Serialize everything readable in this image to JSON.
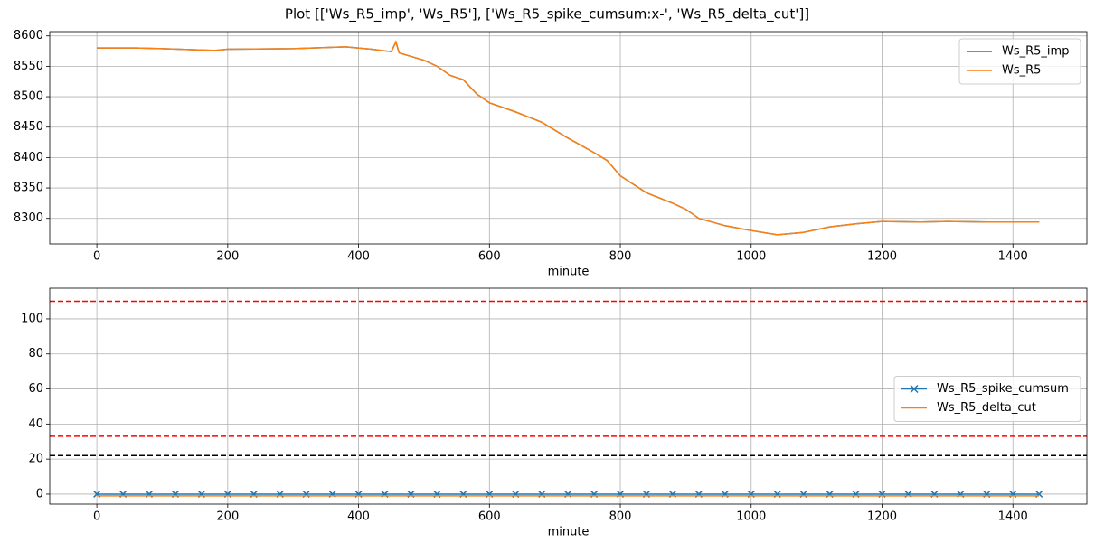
{
  "title": "Plot [['Ws_R5_imp', 'Ws_R5'], ['Ws_R5_spike_cumsum:x-', 'Ws_R5_delta_cut']]",
  "chart_data": [
    {
      "type": "line",
      "xlabel": "minute",
      "grid": true,
      "legend": "upper right",
      "xlim": [
        -72,
        1513
      ],
      "ylim": [
        8258,
        8607
      ],
      "xticks": [
        0,
        200,
        400,
        600,
        800,
        1000,
        1200,
        1400
      ],
      "yticks": [
        8300,
        8350,
        8400,
        8450,
        8500,
        8550,
        8600
      ],
      "x": [
        0,
        60,
        100,
        180,
        200,
        300,
        380,
        420,
        450,
        457,
        462,
        500,
        520,
        540,
        560,
        580,
        600,
        640,
        680,
        720,
        760,
        780,
        800,
        840,
        880,
        900,
        920,
        960,
        1000,
        1040,
        1080,
        1120,
        1160,
        1200,
        1260,
        1300,
        1360,
        1400,
        1440
      ],
      "series": [
        {
          "name": "Ws_R5_imp",
          "color": "#1f77b4",
          "values": [
            8580,
            8580,
            8579,
            8576,
            8578,
            8579,
            8582,
            8578,
            8574,
            8590,
            8572,
            8560,
            8550,
            8535,
            8528,
            8505,
            8490,
            8475,
            8458,
            8432,
            8408,
            8395,
            8370,
            8342,
            8325,
            8315,
            8300,
            8288,
            8280,
            8273,
            8277,
            8286,
            8291,
            8295,
            8294,
            8295,
            8294,
            8294,
            8294
          ]
        },
        {
          "name": "Ws_R5",
          "color": "#ff7f0e",
          "values": [
            8580,
            8580,
            8579,
            8576,
            8578,
            8579,
            8582,
            8578,
            8574,
            8590,
            8572,
            8560,
            8550,
            8535,
            8528,
            8505,
            8490,
            8475,
            8458,
            8432,
            8408,
            8395,
            8370,
            8342,
            8325,
            8315,
            8300,
            8288,
            8280,
            8273,
            8277,
            8286,
            8291,
            8295,
            8294,
            8295,
            8294,
            8294,
            8294
          ]
        }
      ]
    },
    {
      "type": "line",
      "xlabel": "minute",
      "grid": true,
      "legend": "center right",
      "xlim": [
        -72,
        1513
      ],
      "ylim": [
        -5.7,
        117.5
      ],
      "xticks": [
        0,
        200,
        400,
        600,
        800,
        1000,
        1200,
        1400
      ],
      "yticks": [
        0,
        20,
        40,
        60,
        80,
        100
      ],
      "x": [
        0,
        40,
        80,
        120,
        160,
        200,
        240,
        280,
        320,
        360,
        400,
        440,
        480,
        520,
        560,
        600,
        640,
        680,
        720,
        760,
        800,
        840,
        880,
        920,
        960,
        1000,
        1040,
        1080,
        1120,
        1160,
        1200,
        1240,
        1280,
        1320,
        1360,
        1400,
        1440
      ],
      "series": [
        {
          "name": "Ws_R5_spike_cumsum",
          "color": "#1f77b4",
          "marker": "x",
          "values": [
            0,
            0,
            0,
            0,
            0,
            0,
            0,
            0,
            0,
            0,
            0,
            0,
            0,
            0,
            0,
            0,
            0,
            0,
            0,
            0,
            0,
            0,
            0,
            0,
            0,
            0,
            0,
            0,
            0,
            0,
            0,
            0,
            0,
            0,
            0,
            0,
            0
          ]
        },
        {
          "name": "Ws_R5_delta_cut",
          "color": "#ff7f0e",
          "values": [
            -1,
            -1,
            -1,
            -1,
            -1,
            -1,
            -1,
            -1,
            -1,
            -1,
            -1,
            -1,
            -1,
            -1,
            -1,
            -1,
            -1,
            -1,
            -1,
            -1,
            -1,
            -1,
            -1,
            -1,
            -1,
            -1,
            -1,
            -1,
            -1,
            -1,
            -1,
            -1,
            -1,
            -1,
            -1,
            -1,
            -1
          ]
        }
      ],
      "hlines": [
        {
          "value": 110,
          "color": "#ff0000",
          "style": "dashed"
        },
        {
          "value": 33,
          "color": "#ff0000",
          "style": "dashed"
        },
        {
          "value": 22,
          "color": "#000000",
          "style": "dashed"
        }
      ]
    }
  ]
}
